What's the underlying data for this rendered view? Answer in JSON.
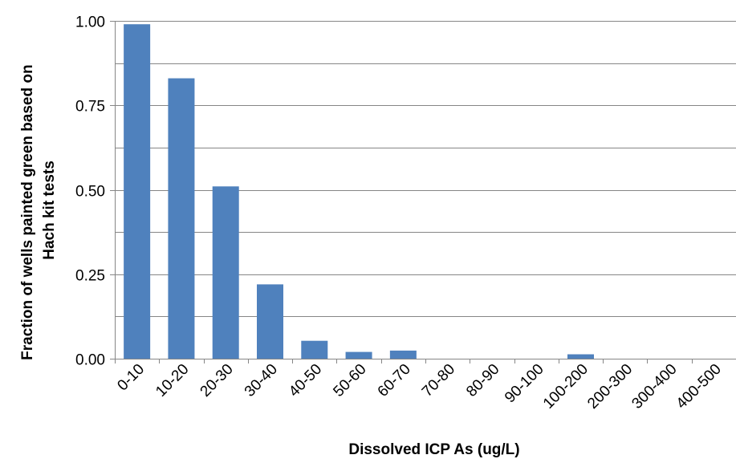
{
  "chart_data": {
    "type": "bar",
    "title": "",
    "xlabel": "Dissolved ICP As (ug/L)",
    "ylabel_lines": [
      "Fraction of wells painted green based on",
      "Hach kit tests"
    ],
    "categories": [
      "0-10",
      "10-20",
      "20-30",
      "30-40",
      "40-50",
      "50-60",
      "60-70",
      "70-80",
      "80-90",
      "90-100",
      "100-200",
      "200-300",
      "300-400",
      "400-500"
    ],
    "values": [
      0.99,
      0.83,
      0.51,
      0.22,
      0.053,
      0.02,
      0.024,
      0.0,
      0.0,
      0.0,
      0.013,
      0.0,
      0.0,
      0.0
    ],
    "ylim": [
      0,
      1.0
    ],
    "yticks": [
      0.0,
      0.25,
      0.5,
      0.75,
      1.0
    ],
    "ytick_labels": [
      "0.00",
      "0.25",
      "0.50",
      "0.75",
      "1.00"
    ],
    "grid": true,
    "bar_color": "#4f81bd",
    "grid_color": "#868686",
    "legend": "none"
  }
}
